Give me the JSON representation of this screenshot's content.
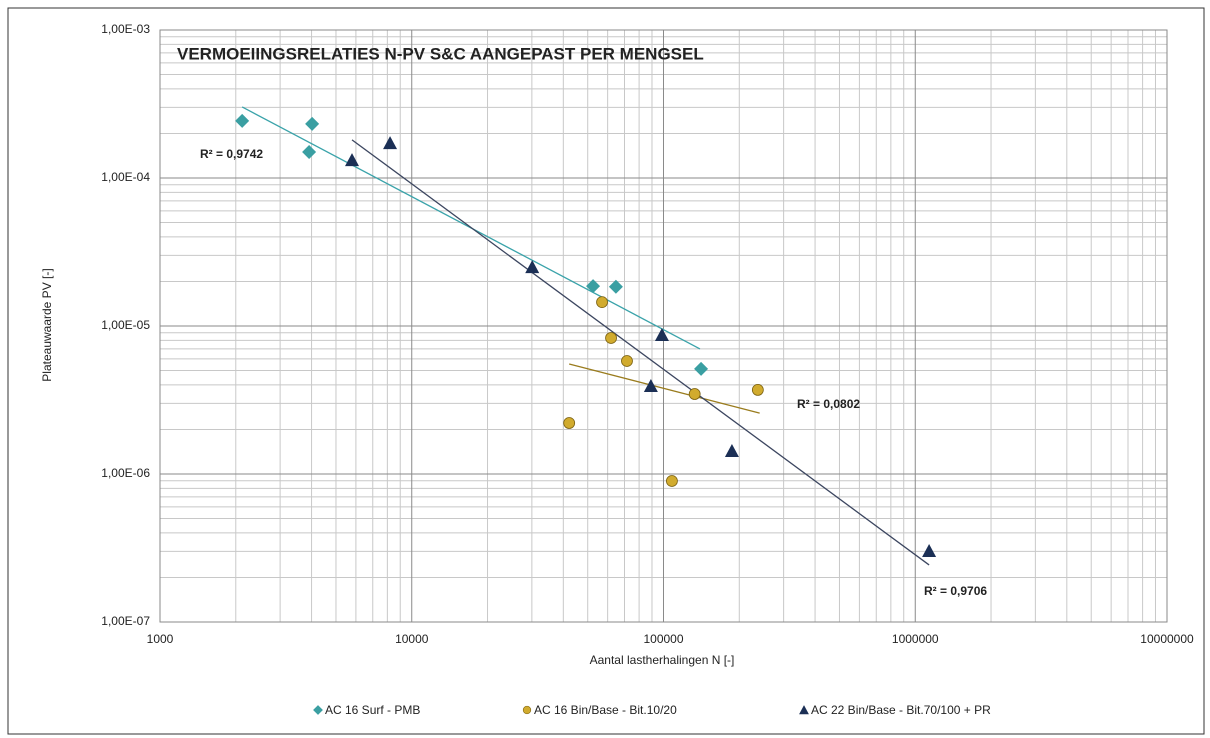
{
  "chart_data": {
    "type": "scatter",
    "title": "VERMOEIINGSRELATIES  N-PV S&C AANGEPAST  PER MENGSEL",
    "x_label": "Aantal lastherhalingen N [-]",
    "y_label": "Plateauwaarde PV [-]",
    "xscale": "log",
    "yscale": "log",
    "grid": true,
    "minor_grid": true,
    "legend": "bottom",
    "xlim": [
      1000,
      10000000
    ],
    "ylim": [
      1e-07,
      0.001
    ],
    "xticks": [
      1000,
      10000,
      100000,
      1000000,
      10000000
    ],
    "yticks": [
      {
        "value": 1e-07,
        "label": "1,00E-07"
      },
      {
        "value": 1e-06,
        "label": "1,00E-06"
      },
      {
        "value": 1e-05,
        "label": "1,00E-05"
      },
      {
        "value": 0.0001,
        "label": "1,00E-04"
      },
      {
        "value": 0.001,
        "label": "1,00E-03"
      }
    ],
    "series": [
      {
        "name": "AC 16 Surf - PMB",
        "color": "#3a9fa2",
        "marker": "diamond",
        "x": [
          2120,
          4020,
          3910,
          52500,
          64700,
          141000
        ],
        "values": [
          0.000243,
          0.000232,
          0.00015,
          1.86e-05,
          1.84e-05,
          5.13e-06
        ],
        "trend": {
          "color": "#3aa3aa",
          "x": [
            2120,
            139600
          ],
          "values": [
            0.000302,
            7e-06
          ],
          "label": "R² = 0,9742",
          "label_color": "#3a9fa2"
        }
      },
      {
        "name": "AC 16 Bin/Base - Bit.10/20",
        "color": "#d1ab2e",
        "marker": "circle",
        "x": [
          57000,
          61900,
          71600,
          42200,
          133000,
          237000,
          108000
        ],
        "values": [
          1.45e-05,
          8.3e-06,
          5.8e-06,
          2.21e-06,
          3.47e-06,
          3.7e-06,
          8.97e-07
        ],
        "trend": {
          "color": "#9a7c1e",
          "x": [
            42200,
            241000
          ],
          "values": [
            5.54e-06,
            2.58e-06
          ],
          "label": "R² = 0,0802",
          "label_color": "#e0b848"
        }
      },
      {
        "name": "AC 22 Bin/Base - Bit.70/100 + PR",
        "color": "#1b2f55",
        "marker": "triangle",
        "x": [
          5790,
          8200,
          30100,
          98600,
          89100,
          187000,
          1135000
        ],
        "values": [
          0.000132,
          0.000172,
          2.5e-05,
          8.7e-06,
          3.93e-06,
          1.43e-06,
          3.02e-07
        ],
        "trend": {
          "color": "#3c4660",
          "x": [
            5790,
            1135000
          ],
          "values": [
            0.000181,
            2.43e-07
          ],
          "label": "R² = 0,9706",
          "label_color": "#111111"
        }
      }
    ]
  }
}
